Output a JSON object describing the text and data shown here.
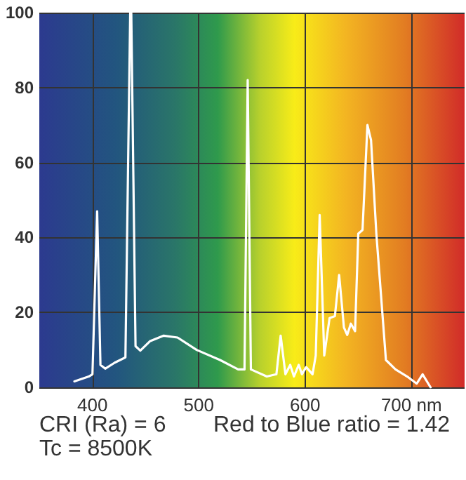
{
  "chart_data": {
    "type": "line",
    "x": [
      383,
      396.5,
      400,
      404.4,
      407.5,
      412,
      421,
      431,
      435.5,
      436.5,
      440.5,
      445,
      454,
      467,
      480,
      498,
      520,
      537,
      543,
      546,
      549,
      564,
      573,
      577,
      581.5,
      586,
      589.5,
      594,
      597,
      601,
      607,
      610,
      613.7,
      618,
      623,
      628,
      632,
      636.5,
      639.6,
      643,
      647,
      650,
      654,
      658.6,
      662,
      667,
      676,
      685,
      696,
      705,
      710.5,
      718
    ],
    "series": [
      {
        "color": "#ffffff",
        "values": [
          1.6,
          2.9,
          3.5,
          47,
          6,
          5,
          6.6,
          8,
          100,
          100,
          11,
          9.8,
          12.3,
          13.8,
          13.3,
          10,
          7.3,
          4.8,
          4.8,
          82,
          4.8,
          2.9,
          3.5,
          13.8,
          3.5,
          6,
          2.9,
          6,
          3.5,
          5.4,
          3.5,
          8.5,
          46,
          8.5,
          18.5,
          19,
          30,
          16,
          14,
          17,
          15,
          41,
          42,
          70,
          66,
          41,
          7.3,
          4.8,
          2.9,
          1,
          3.5,
          0
        ]
      }
    ],
    "xlim": [
      350,
      750
    ],
    "xticks": [
      400,
      500,
      600,
      {
        "value": 700,
        "label": "700 nm"
      }
    ],
    "ylim": [
      0,
      100
    ],
    "yticks": [
      0,
      20,
      40,
      60,
      80,
      100
    ],
    "grid": true,
    "marker": "none",
    "line_style": "solid",
    "annotations": [
      "CRI (Ra) = 6",
      "Red to Blue ratio = 1.42",
      "Tc = 8500K"
    ]
  }
}
